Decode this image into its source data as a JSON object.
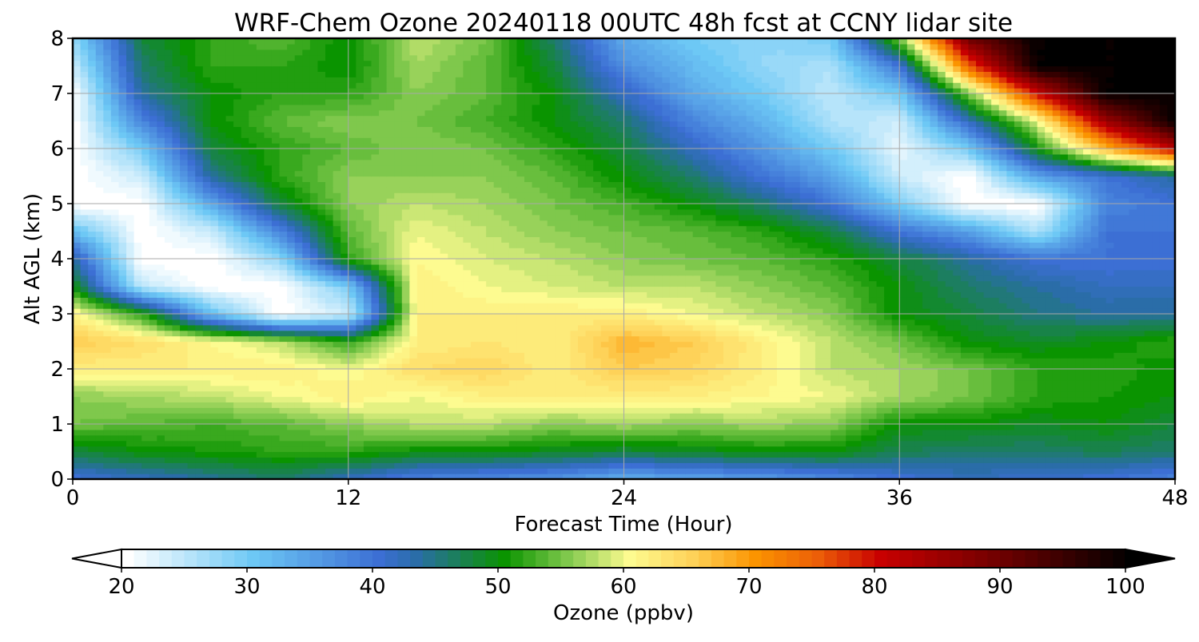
{
  "chart_data": {
    "type": "heatmap",
    "subtype": "filled-contour time-height cross section",
    "title": "WRF-Chem Ozone  20240118 00UTC 48h fcst at CCNY lidar site",
    "xlabel": "Forecast Time (Hour)",
    "ylabel": "Alt AGL (km)",
    "xlim": [
      0,
      48
    ],
    "ylim": [
      0,
      8
    ],
    "xticks": [
      0,
      12,
      24,
      36,
      48
    ],
    "yticks": [
      0,
      1,
      2,
      3,
      4,
      5,
      6,
      7,
      8
    ],
    "grid": true,
    "x": [
      0,
      3,
      6,
      9,
      12,
      15,
      18,
      21,
      24,
      27,
      30,
      33,
      36,
      39,
      42,
      45,
      48
    ],
    "y": [
      0,
      0.5,
      1,
      1.5,
      2,
      2.5,
      3,
      3.5,
      4,
      4.5,
      5,
      5.5,
      6,
      6.5,
      7,
      7.5,
      8
    ],
    "z_by_altitude": [
      [
        40,
        42,
        44,
        46,
        42,
        38,
        37,
        36,
        33,
        34,
        35,
        37,
        40,
        42,
        41,
        40,
        38
      ],
      [
        48,
        50,
        51,
        52,
        52,
        50,
        50,
        49,
        48,
        49,
        50,
        50,
        47,
        46,
        46,
        47,
        46
      ],
      [
        55,
        54,
        53,
        54,
        56,
        58,
        58,
        56,
        57,
        56,
        57,
        56,
        50,
        50,
        49,
        50,
        48
      ],
      [
        56,
        57,
        58,
        60,
        62,
        60,
        62,
        62,
        62,
        62,
        61,
        60,
        57,
        55,
        52,
        51,
        50
      ],
      [
        62,
        62,
        62,
        62,
        60,
        64,
        65,
        62,
        66,
        65,
        62,
        58,
        57,
        55,
        52,
        52,
        50
      ],
      [
        66,
        64,
        61,
        58,
        52,
        62,
        63,
        62,
        68,
        66,
        62,
        58,
        55,
        50,
        49,
        50,
        52
      ],
      [
        62,
        52,
        32,
        20,
        24,
        62,
        62,
        62,
        62,
        60,
        58,
        56,
        50,
        48,
        45,
        44,
        44
      ],
      [
        50,
        25,
        20,
        20,
        30,
        62,
        60,
        59,
        58,
        58,
        56,
        54,
        50,
        46,
        44,
        42,
        42
      ],
      [
        44,
        20,
        20,
        28,
        52,
        61,
        59,
        58,
        56,
        55,
        54,
        52,
        48,
        44,
        40,
        40,
        40
      ],
      [
        32,
        20,
        24,
        38,
        54,
        60,
        58,
        56,
        55,
        54,
        52,
        48,
        40,
        35,
        26,
        40,
        40
      ],
      [
        20,
        20,
        34,
        48,
        56,
        58,
        57,
        55,
        53,
        50,
        46,
        40,
        30,
        20,
        20,
        38,
        40
      ],
      [
        20,
        24,
        44,
        52,
        56,
        56,
        56,
        54,
        50,
        46,
        40,
        35,
        24,
        20,
        35,
        40,
        44
      ],
      [
        20,
        30,
        48,
        52,
        54,
        56,
        55,
        52,
        48,
        42,
        36,
        30,
        22,
        30,
        50,
        68,
        82
      ],
      [
        20,
        38,
        50,
        54,
        56,
        55,
        53,
        50,
        46,
        38,
        33,
        26,
        24,
        42,
        60,
        85,
        100
      ],
      [
        20,
        44,
        50,
        52,
        52,
        56,
        54,
        50,
        42,
        34,
        30,
        25,
        30,
        55,
        80,
        100,
        100
      ],
      [
        24,
        46,
        52,
        52,
        50,
        57,
        54,
        48,
        37,
        32,
        28,
        26,
        40,
        75,
        100,
        100,
        100
      ],
      [
        28,
        48,
        52,
        54,
        50,
        58,
        55,
        46,
        34,
        30,
        28,
        30,
        55,
        90,
        100,
        100,
        100
      ]
    ],
    "colorbar": {
      "label": "Ozone  (ppbv)",
      "min": 20,
      "max": 100,
      "step": 1,
      "ticks": [
        20,
        30,
        40,
        50,
        60,
        70,
        80,
        90,
        100
      ],
      "extend": "both",
      "color_stops": [
        {
          "value": 20,
          "color": "#ffffff"
        },
        {
          "value": 30,
          "color": "#6dc8f5"
        },
        {
          "value": 40,
          "color": "#3c6fd4"
        },
        {
          "value": 43,
          "color": "#2a6da8"
        },
        {
          "value": 50,
          "color": "#0a9400"
        },
        {
          "value": 55,
          "color": "#7fc84c"
        },
        {
          "value": 60,
          "color": "#fdfb90"
        },
        {
          "value": 65,
          "color": "#fed259"
        },
        {
          "value": 70,
          "color": "#fb9400"
        },
        {
          "value": 75,
          "color": "#ec5e08"
        },
        {
          "value": 80,
          "color": "#c80000"
        },
        {
          "value": 90,
          "color": "#6a0000"
        },
        {
          "value": 100,
          "color": "#000000"
        }
      ]
    }
  }
}
